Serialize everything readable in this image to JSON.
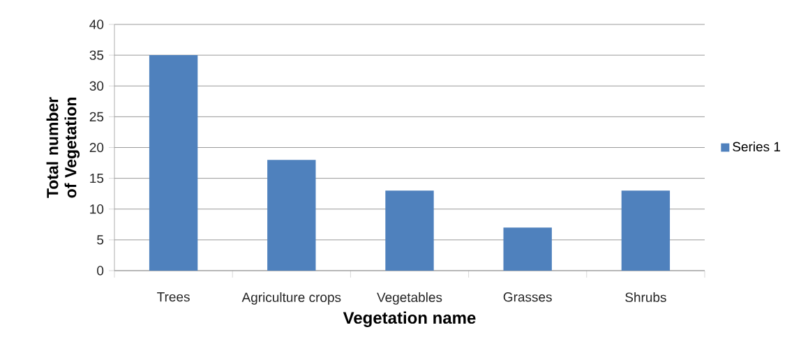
{
  "chart_data": {
    "type": "bar",
    "xlabel": "Vegetation name",
    "ylabel": "Total number of Vegetation",
    "categories": [
      "Trees",
      "Agriculture crops",
      "Vegetables",
      "Grasses",
      "Shrubs"
    ],
    "series": [
      {
        "name": "Series 1",
        "color": "#4f81bd",
        "values": [
          35,
          18,
          13,
          7,
          13
        ]
      }
    ],
    "ylim": [
      0,
      40
    ],
    "yticks": [
      0,
      5,
      10,
      15,
      20,
      25,
      30,
      35,
      40
    ],
    "grid": "y",
    "legend": "right"
  }
}
